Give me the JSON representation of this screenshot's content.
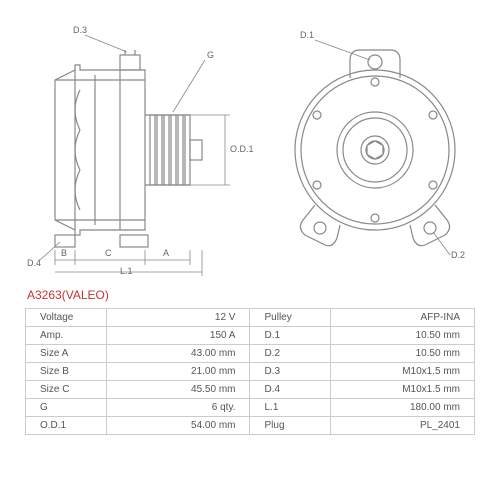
{
  "part": {
    "number": "A3263",
    "vendor": "(VALEO)"
  },
  "side_view": {
    "labels": {
      "d3": "D.3",
      "g": "G",
      "d4": "D.4",
      "b": "B",
      "c": "C",
      "a": "A",
      "l1": "L.1",
      "od1": "O.D.1"
    }
  },
  "front_view": {
    "labels": {
      "d1": "D.1",
      "d2": "D.2"
    }
  },
  "specs_left": [
    {
      "label": "Voltage",
      "value": "12 V"
    },
    {
      "label": "Amp.",
      "value": "150 A"
    },
    {
      "label": "Size A",
      "value": "43.00 mm"
    },
    {
      "label": "Size B",
      "value": "21.00 mm"
    },
    {
      "label": "Size C",
      "value": "45.50 mm"
    },
    {
      "label": "G",
      "value": "6 qty."
    },
    {
      "label": "O.D.1",
      "value": "54.00 mm"
    }
  ],
  "specs_right": [
    {
      "label": "Pulley",
      "value": "AFP-INA"
    },
    {
      "label": "D.1",
      "value": "10.50 mm"
    },
    {
      "label": "D.2",
      "value": "10.50 mm"
    },
    {
      "label": "D.3",
      "value": "M10x1.5 mm"
    },
    {
      "label": "D.4",
      "value": "M10x1.5 mm"
    },
    {
      "label": "L.1",
      "value": "180.00 mm"
    },
    {
      "label": "Plug",
      "value": "PL_2401"
    }
  ],
  "style": {
    "title_color": "#cc3333",
    "line_color": "#888888",
    "text_color": "#555555",
    "border_color": "#cccccc",
    "background": "#ffffff",
    "font_size_table": 10,
    "font_size_label": 9,
    "font_size_title": 12
  }
}
